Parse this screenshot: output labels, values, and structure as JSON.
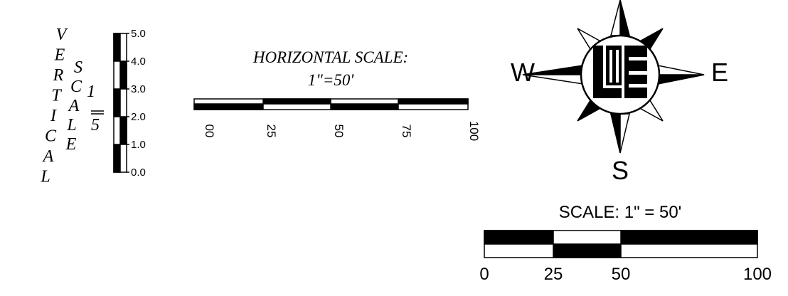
{
  "vertical_scale": {
    "word1": [
      "V",
      "E",
      "R",
      "T",
      "I",
      "C",
      "A",
      "L"
    ],
    "word2": [
      "S",
      "C",
      "A",
      "L",
      "E"
    ],
    "ratio_top": "1",
    "ratio_bottom": "5",
    "ticks": [
      "5.0",
      "4.0",
      "3.0",
      "2.0",
      "1.0",
      "0.0"
    ]
  },
  "horizontal_scale": {
    "title": "HORIZONTAL SCALE:",
    "ratio": "1\"=50'",
    "ticks": [
      "00",
      "25",
      "50",
      "75",
      "100"
    ]
  },
  "compass": {
    "west": "W",
    "east": "E",
    "south": "S"
  },
  "scale_bar": {
    "title": "SCALE:  1\"  =  50'",
    "ticks": [
      "0",
      "25",
      "50",
      "100"
    ]
  }
}
